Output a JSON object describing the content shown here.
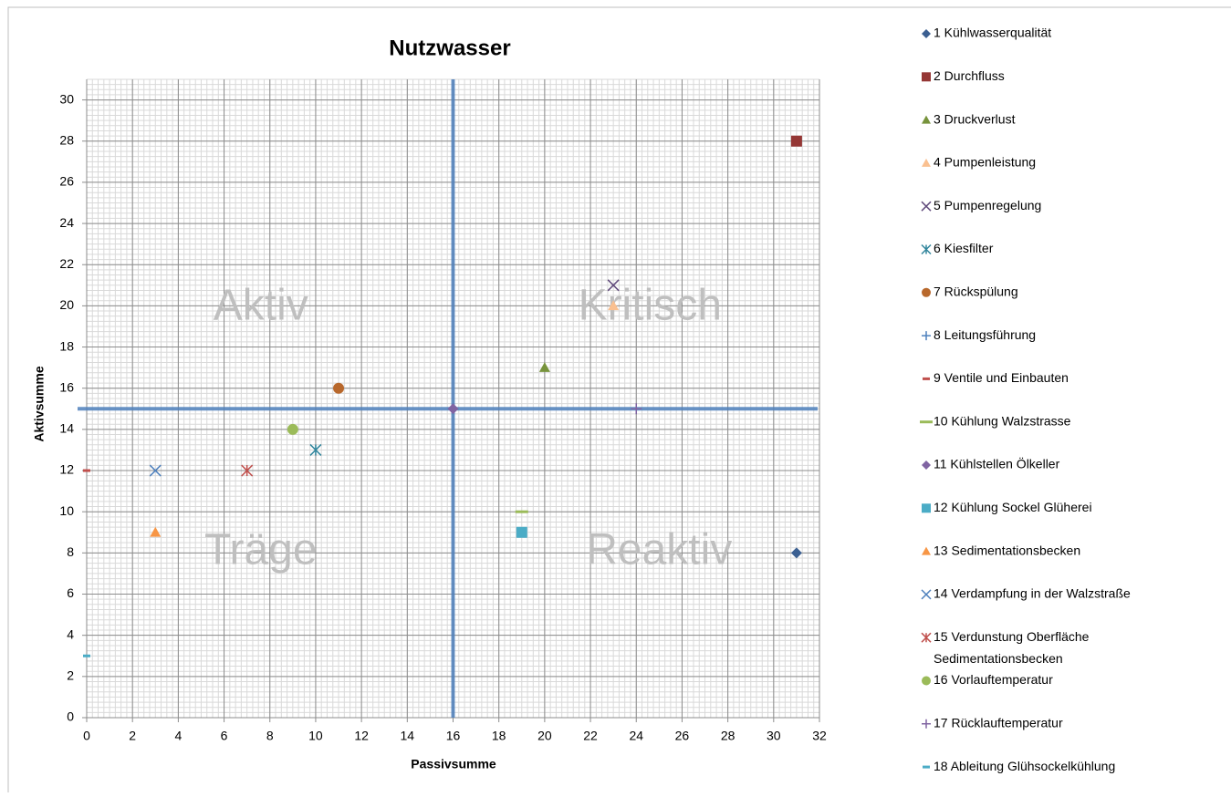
{
  "chart_data": {
    "type": "scatter",
    "title": "Nutzwasser",
    "x_label": "Passivsumme",
    "y_label": "Aktivsumme",
    "xlim": [
      0,
      32
    ],
    "ylim": [
      0,
      31
    ],
    "xticks": [
      0,
      2,
      4,
      6,
      8,
      10,
      12,
      14,
      16,
      18,
      20,
      22,
      24,
      26,
      28,
      30,
      32
    ],
    "yticks": [
      0,
      2,
      4,
      6,
      8,
      10,
      12,
      14,
      16,
      18,
      20,
      22,
      24,
      26,
      28,
      30
    ],
    "grid": true,
    "minor_grid_step": 0.25,
    "legend": "right",
    "quadrant_lines": {
      "x": 16,
      "y": 15,
      "color": "#4f81bd"
    },
    "annotations": [
      "Aktiv",
      "Kritisch",
      "Träge",
      "Reaktiv"
    ],
    "series": [
      {
        "name": "1 Kühlwasserqualität",
        "color": "#3b5f91",
        "marker": "diamond",
        "x": [
          31
        ],
        "values": [
          8
        ]
      },
      {
        "name": "2 Durchfluss",
        "color": "#953735",
        "marker": "square",
        "x": [
          31
        ],
        "values": [
          28
        ]
      },
      {
        "name": "3 Druckverlust",
        "color": "#77933c",
        "marker": "triangle",
        "x": [
          20
        ],
        "values": [
          17
        ]
      },
      {
        "name": "4 Pumpenleistung",
        "color": "#fac090",
        "marker": "triangle",
        "x": [
          23
        ],
        "values": [
          20
        ]
      },
      {
        "name": "5 Pumpenregelung",
        "color": "#604a7b",
        "marker": "x",
        "x": [
          23
        ],
        "values": [
          21
        ]
      },
      {
        "name": "6 Kiesfilter",
        "color": "#31859c",
        "marker": "star",
        "x": [
          10
        ],
        "values": [
          13
        ]
      },
      {
        "name": "7 Rückspülung",
        "color": "#b8682c",
        "marker": "circle",
        "x": [
          11
        ],
        "values": [
          16
        ]
      },
      {
        "name": "8 Leitungsführung",
        "color": "#4f81bd",
        "marker": "plus",
        "x": [
          16
        ],
        "values": [
          15
        ]
      },
      {
        "name": "9 Ventile und Einbauten",
        "color": "#c0504d",
        "marker": "dash",
        "x": [
          0
        ],
        "values": [
          12
        ]
      },
      {
        "name": "10 Kühlung Walzstrasse",
        "color": "#9bbb59",
        "marker": "longdash",
        "x": [
          19
        ],
        "values": [
          10
        ]
      },
      {
        "name": "11 Kühlstellen Ölkeller",
        "color": "#8064a2",
        "marker": "diamond",
        "x": [
          16
        ],
        "values": [
          15
        ]
      },
      {
        "name": "12 Kühlung Sockel Glüherei",
        "color": "#4bacc6",
        "marker": "square",
        "x": [
          19
        ],
        "values": [
          9
        ]
      },
      {
        "name": "13 Sedimentationsbecken",
        "color": "#f79646",
        "marker": "triangle",
        "x": [
          3
        ],
        "values": [
          9
        ]
      },
      {
        "name": "14 Verdampfung in der Walzstraße",
        "color": "#4f81bd",
        "marker": "x",
        "x": [
          3
        ],
        "values": [
          12
        ]
      },
      {
        "name": "15 Verdunstung Oberfläche Sedimentationsbecken",
        "color": "#c0504d",
        "marker": "star",
        "x": [
          7
        ],
        "values": [
          12
        ]
      },
      {
        "name": "16 Vorlauftemperatur",
        "color": "#9bbb59",
        "marker": "circle",
        "x": [
          9
        ],
        "values": [
          14
        ]
      },
      {
        "name": "17 Rücklauftemperatur",
        "color": "#8064a2",
        "marker": "plus",
        "x": [
          24
        ],
        "values": [
          15
        ]
      },
      {
        "name": "18 Ableitung Glühsockelkühlung",
        "color": "#4bacc6",
        "marker": "dash",
        "x": [
          0
        ],
        "values": [
          3
        ]
      }
    ]
  }
}
